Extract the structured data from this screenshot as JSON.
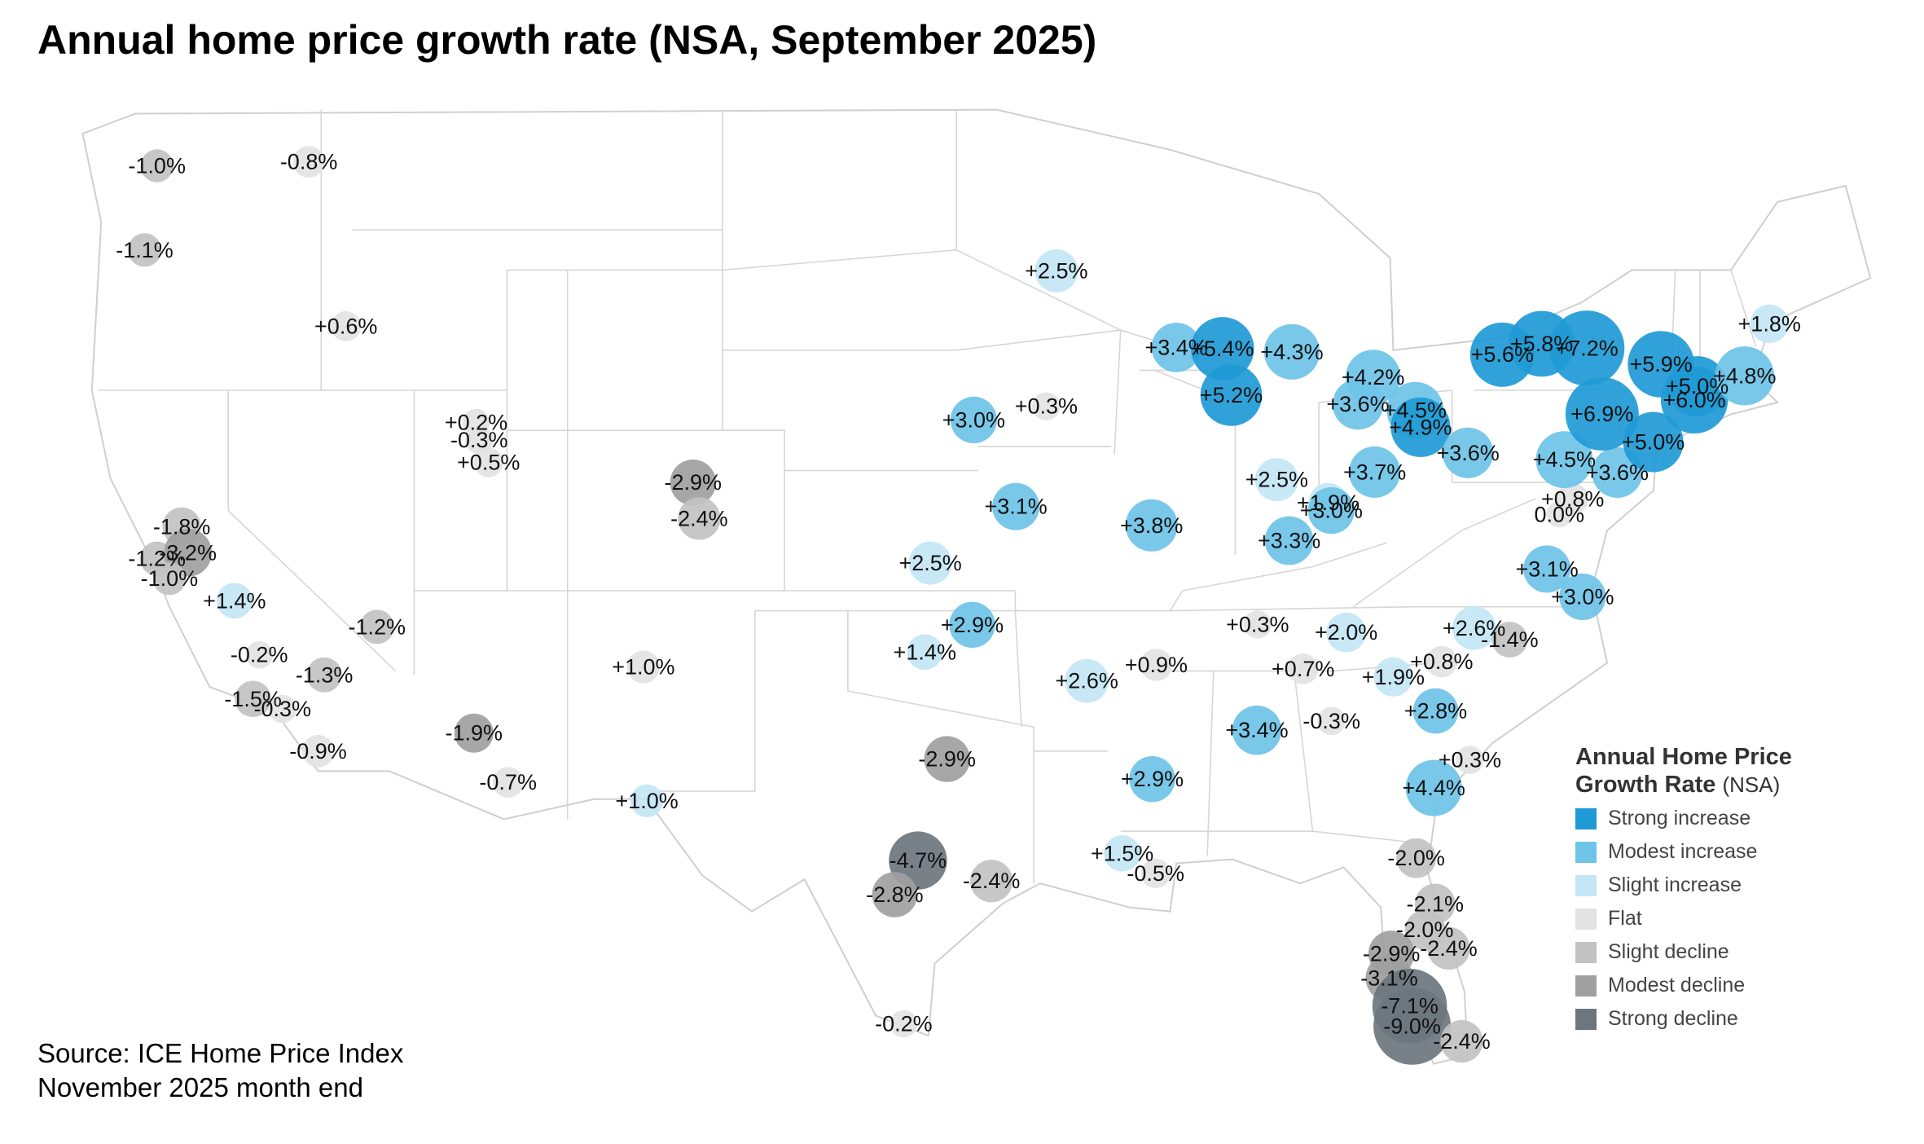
{
  "title": "Annual home price growth rate (NSA, September 2025)",
  "source_lines": [
    "Source: ICE Home Price Index",
    "November 2025 month end"
  ],
  "legend": {
    "title_bold_line1": "Annual Home Price",
    "title_bold_line2": "Growth Rate",
    "title_suffix": "(NSA)",
    "items": [
      {
        "label": "Strong increase",
        "color": "#1f9ad6"
      },
      {
        "label": "Modest increase",
        "color": "#6ec3e8"
      },
      {
        "label": "Slight increase",
        "color": "#c4e6f5"
      },
      {
        "label": "Flat",
        "color": "#e3e3e3"
      },
      {
        "label": "Slight decline",
        "color": "#c2c2c2"
      },
      {
        "label": "Modest decline",
        "color": "#a0a0a0"
      },
      {
        "label": "Strong decline",
        "color": "#6d767e"
      }
    ]
  },
  "markets": [
    {
      "label": "-1.0%",
      "value": -1.0,
      "category": "Slight decline",
      "lat": 47.6,
      "lon": -122.3
    },
    {
      "label": "-0.8%",
      "value": -0.8,
      "category": "Flat",
      "lat": 47.7,
      "lon": -117.4
    },
    {
      "label": "-1.1%",
      "value": -1.1,
      "category": "Slight decline",
      "lat": 45.5,
      "lon": -122.7
    },
    {
      "label": "+0.6%",
      "value": 0.6,
      "category": "Flat",
      "lat": 43.6,
      "lon": -116.2
    },
    {
      "label": "+0.2%",
      "value": 0.2,
      "category": "Flat",
      "lat": 41.2,
      "lon": -112.0
    },
    {
      "label": "-0.3%",
      "value": -0.3,
      "category": "Flat",
      "lat": 40.76,
      "lon": -111.9
    },
    {
      "label": "+0.5%",
      "value": 0.5,
      "category": "Flat",
      "lat": 40.2,
      "lon": -111.6
    },
    {
      "label": "-2.9%",
      "value": -2.9,
      "category": "Modest decline",
      "lat": 39.7,
      "lon": -105.0
    },
    {
      "label": "-2.4%",
      "value": -2.4,
      "category": "Slight decline",
      "lat": 38.8,
      "lon": -104.8
    },
    {
      "label": "-1.8%",
      "value": -1.8,
      "category": "Slight decline",
      "lat": 38.6,
      "lon": -121.5
    },
    {
      "label": "-1.2%",
      "value": -1.2,
      "category": "Slight decline",
      "lat": 37.8,
      "lon": -122.3
    },
    {
      "label": "-3.2%",
      "value": -3.2,
      "category": "Modest decline",
      "lat": 37.95,
      "lon": -121.3
    },
    {
      "label": "-1.0%",
      "value": -1.0,
      "category": "Slight decline",
      "lat": 37.3,
      "lon": -121.9
    },
    {
      "label": "+1.4%",
      "value": 1.4,
      "category": "Slight increase",
      "lat": 36.75,
      "lon": -119.8
    },
    {
      "label": "-1.2%",
      "value": -1.2,
      "category": "Slight decline",
      "lat": 36.1,
      "lon": -115.2
    },
    {
      "label": "-1.3%",
      "value": -1.3,
      "category": "Slight decline",
      "lat": 34.9,
      "lon": -116.9
    },
    {
      "label": "-0.2%",
      "value": -0.2,
      "category": "Flat",
      "lat": 35.4,
      "lon": -119.0
    },
    {
      "label": "-1.5%",
      "value": -1.5,
      "category": "Slight decline",
      "lat": 34.3,
      "lon": -119.2
    },
    {
      "label": "-0.3%",
      "value": -0.3,
      "category": "Flat",
      "lat": 34.05,
      "lon": -118.25
    },
    {
      "label": "-0.9%",
      "value": -0.9,
      "category": "Flat",
      "lat": 33.0,
      "lon": -117.1
    },
    {
      "label": "-1.9%",
      "value": -1.9,
      "category": "Modest decline",
      "lat": 33.45,
      "lon": -112.07
    },
    {
      "label": "-0.7%",
      "value": -0.7,
      "category": "Flat",
      "lat": 32.22,
      "lon": -110.97
    },
    {
      "label": "+1.0%",
      "value": 1.0,
      "category": "Flat",
      "lat": 35.1,
      "lon": -106.6
    },
    {
      "label": "+1.0%",
      "value": 1.0,
      "category": "Slight increase",
      "lat": 31.76,
      "lon": -106.49
    },
    {
      "label": "+2.5%",
      "value": 2.5,
      "category": "Slight increase",
      "lat": 44.98,
      "lon": -93.27
    },
    {
      "label": "+3.0%",
      "value": 3.0,
      "category": "Modest increase",
      "lat": 41.26,
      "lon": -95.94
    },
    {
      "label": "+0.3%",
      "value": 0.3,
      "category": "Flat",
      "lat": 41.6,
      "lon": -93.6
    },
    {
      "label": "+3.1%",
      "value": 3.1,
      "category": "Modest increase",
      "lat": 39.1,
      "lon": -94.58
    },
    {
      "label": "+3.8%",
      "value": 3.8,
      "category": "Modest increase",
      "lat": 38.63,
      "lon": -90.2
    },
    {
      "label": "+2.5%",
      "value": 2.5,
      "category": "Slight increase",
      "lat": 37.69,
      "lon": -97.34
    },
    {
      "label": "+2.9%",
      "value": 2.9,
      "category": "Modest increase",
      "lat": 36.15,
      "lon": -95.99
    },
    {
      "label": "+1.4%",
      "value": 1.4,
      "category": "Slight increase",
      "lat": 35.47,
      "lon": -97.52
    },
    {
      "label": "-2.9%",
      "value": -2.9,
      "category": "Modest decline",
      "lat": 32.8,
      "lon": -96.8
    },
    {
      "label": "-4.7%",
      "value": -4.7,
      "category": "Strong decline",
      "lat": 30.27,
      "lon": -97.74
    },
    {
      "label": "-2.8%",
      "value": -2.8,
      "category": "Modest decline",
      "lat": 29.42,
      "lon": -98.49
    },
    {
      "label": "-2.4%",
      "value": -2.4,
      "category": "Slight decline",
      "lat": 29.76,
      "lon": -95.37
    },
    {
      "label": "-0.2%",
      "value": -0.2,
      "category": "Flat",
      "lat": 26.2,
      "lon": -98.2
    },
    {
      "label": "+2.6%",
      "value": 2.6,
      "category": "Slight increase",
      "lat": 34.75,
      "lon": -92.29
    },
    {
      "label": "+0.9%",
      "value": 0.9,
      "category": "Flat",
      "lat": 35.15,
      "lon": -90.05
    },
    {
      "label": "+2.9%",
      "value": 2.9,
      "category": "Modest increase",
      "lat": 32.3,
      "lon": -90.18
    },
    {
      "label": "+1.5%",
      "value": 1.5,
      "category": "Slight increase",
      "lat": 30.45,
      "lon": -91.15
    },
    {
      "label": "-0.5%",
      "value": -0.5,
      "category": "Flat",
      "lat": 29.95,
      "lon": -90.07
    },
    {
      "label": "+3.4%",
      "value": 3.4,
      "category": "Modest increase",
      "lat": 43.07,
      "lon": -89.4
    },
    {
      "label": "+5.4%",
      "value": 5.4,
      "category": "Strong increase",
      "lat": 43.04,
      "lon": -87.91
    },
    {
      "label": "+4.3%",
      "value": 4.3,
      "category": "Modest increase",
      "lat": 42.96,
      "lon": -85.67
    },
    {
      "label": "+5.2%",
      "value": 5.2,
      "category": "Strong increase",
      "lat": 41.88,
      "lon": -87.63
    },
    {
      "label": "+4.2%",
      "value": 4.2,
      "category": "Modest increase",
      "lat": 42.33,
      "lon": -83.05
    },
    {
      "label": "+3.6%",
      "value": 3.6,
      "category": "Modest increase",
      "lat": 41.65,
      "lon": -83.54
    },
    {
      "label": "+4.5%",
      "value": 4.5,
      "category": "Modest increase",
      "lat": 41.5,
      "lon": -81.69
    },
    {
      "label": "+4.9%",
      "value": 4.9,
      "category": "Strong increase",
      "lat": 41.08,
      "lon": -81.52
    },
    {
      "label": "+3.6%",
      "value": 3.6,
      "category": "Modest increase",
      "lat": 40.44,
      "lon": -79.99
    },
    {
      "label": "+2.5%",
      "value": 2.5,
      "category": "Slight increase",
      "lat": 39.77,
      "lon": -86.16
    },
    {
      "label": "+3.7%",
      "value": 3.7,
      "category": "Modest increase",
      "lat": 39.96,
      "lon": -83.0
    },
    {
      "label": "+1.9%",
      "value": 1.9,
      "category": "Slight increase",
      "lat": 39.2,
      "lon": -84.5
    },
    {
      "label": "+3.0%",
      "value": 3.0,
      "category": "Modest increase",
      "lat": 39.0,
      "lon": -84.4
    },
    {
      "label": "+3.3%",
      "value": 3.3,
      "category": "Modest increase",
      "lat": 38.25,
      "lon": -85.76
    },
    {
      "label": "+0.3%",
      "value": 0.3,
      "category": "Flat",
      "lat": 36.16,
      "lon": -86.78
    },
    {
      "label": "+2.0%",
      "value": 2.0,
      "category": "Slight increase",
      "lat": 35.96,
      "lon": -83.92
    },
    {
      "label": "+0.7%",
      "value": 0.7,
      "category": "Flat",
      "lat": 35.05,
      "lon": -85.31
    },
    {
      "label": "+3.4%",
      "value": 3.4,
      "category": "Modest increase",
      "lat": 33.52,
      "lon": -86.8
    },
    {
      "label": "-0.3%",
      "value": -0.3,
      "category": "Flat",
      "lat": 33.75,
      "lon": -84.39
    },
    {
      "label": "+1.9%",
      "value": 1.9,
      "category": "Slight increase",
      "lat": 34.85,
      "lon": -82.4
    },
    {
      "label": "+2.8%",
      "value": 2.8,
      "category": "Modest increase",
      "lat": 34.0,
      "lon": -81.03
    },
    {
      "label": "+4.4%",
      "value": 4.4,
      "category": "Modest increase",
      "lat": 32.08,
      "lon": -81.09
    },
    {
      "label": "+0.3%",
      "value": 0.3,
      "category": "Flat",
      "lat": 32.78,
      "lon": -79.93
    },
    {
      "label": "+2.6%",
      "value": 2.6,
      "category": "Slight increase",
      "lat": 36.07,
      "lon": -79.79
    },
    {
      "label": "+0.8%",
      "value": 0.8,
      "category": "Flat",
      "lat": 35.23,
      "lon": -80.84
    },
    {
      "label": "-1.4%",
      "value": -1.4,
      "category": "Slight decline",
      "lat": 35.78,
      "lon": -78.64
    },
    {
      "label": "+3.1%",
      "value": 3.1,
      "category": "Modest increase",
      "lat": 37.54,
      "lon": -77.44
    },
    {
      "label": "+3.0%",
      "value": 3.0,
      "category": "Modest increase",
      "lat": 36.85,
      "lon": -76.29
    },
    {
      "label": "0.0%",
      "value": 0.0,
      "category": "Flat",
      "lat": 38.9,
      "lon": -77.04
    },
    {
      "label": "+0.8%",
      "value": 0.8,
      "category": "Flat",
      "lat": 39.29,
      "lon": -76.61
    },
    {
      "label": "+4.5%",
      "value": 4.5,
      "category": "Modest increase",
      "lat": 40.27,
      "lon": -76.88
    },
    {
      "label": "+3.6%",
      "value": 3.6,
      "category": "Modest increase",
      "lat": 39.95,
      "lon": -75.17
    },
    {
      "label": "+6.9%",
      "value": 6.9,
      "category": "Strong increase",
      "lat": 41.41,
      "lon": -75.66
    },
    {
      "label": "+5.0%",
      "value": 5.0,
      "category": "Strong increase",
      "lat": 40.71,
      "lon": -74.01
    },
    {
      "label": "+5.6%",
      "value": 5.6,
      "category": "Strong increase",
      "lat": 42.89,
      "lon": -78.88
    },
    {
      "label": "+7.2%",
      "value": 7.2,
      "category": "Strong increase",
      "lat": 43.05,
      "lon": -76.15
    },
    {
      "label": "+5.8%",
      "value": 5.8,
      "category": "Strong increase",
      "lat": 43.16,
      "lon": -77.61
    },
    {
      "label": "+5.9%",
      "value": 5.9,
      "category": "Strong increase",
      "lat": 42.65,
      "lon": -73.76
    },
    {
      "label": "+1.8%",
      "value": 1.8,
      "category": "Slight increase",
      "lat": 43.66,
      "lon": -70.26
    },
    {
      "label": "+5.0%",
      "value": 5.0,
      "category": "Strong increase",
      "lat": 42.1,
      "lon": -72.59
    },
    {
      "label": "+6.0%",
      "value": 6.0,
      "category": "Strong increase",
      "lat": 41.76,
      "lon": -72.68
    },
    {
      "label": "+4.8%",
      "value": 4.8,
      "category": "Modest increase",
      "lat": 42.36,
      "lon": -71.06
    },
    {
      "label": "-2.0%",
      "value": -2.0,
      "category": "Slight decline",
      "lat": 30.33,
      "lon": -81.66
    },
    {
      "label": "-2.1%",
      "value": -2.1,
      "category": "Slight decline",
      "lat": 29.19,
      "lon": -81.05
    },
    {
      "label": "-2.0%",
      "value": -2.0,
      "category": "Slight decline",
      "lat": 28.54,
      "lon": -81.38
    },
    {
      "label": "-2.9%",
      "value": -2.9,
      "category": "Modest decline",
      "lat": 27.95,
      "lon": -82.46
    },
    {
      "label": "-2.4%",
      "value": -2.4,
      "category": "Slight decline",
      "lat": 28.08,
      "lon": -80.61
    },
    {
      "label": "-3.1%",
      "value": -3.1,
      "category": "Modest decline",
      "lat": 27.34,
      "lon": -82.53
    },
    {
      "label": "-7.1%",
      "value": -7.1,
      "category": "Strong decline",
      "lat": 26.64,
      "lon": -81.87
    },
    {
      "label": "-9.0%",
      "value": -9.0,
      "category": "Strong decline",
      "lat": 26.14,
      "lon": -81.79
    },
    {
      "label": "-2.4%",
      "value": -2.4,
      "category": "Slight decline",
      "lat": 25.76,
      "lon": -80.19
    }
  ]
}
